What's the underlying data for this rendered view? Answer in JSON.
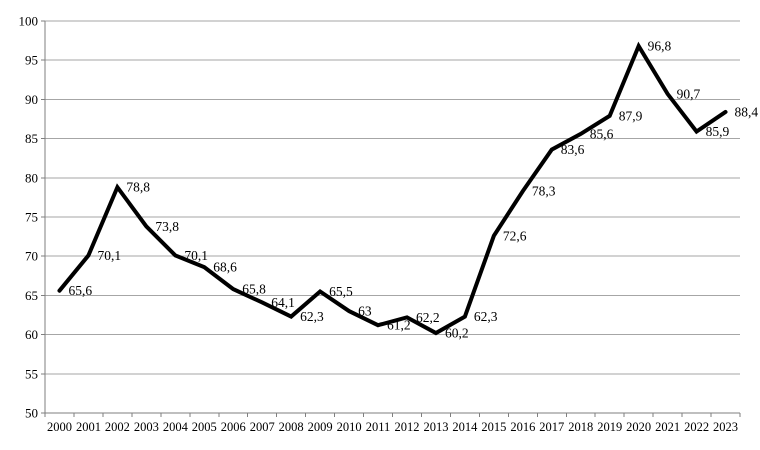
{
  "chart": {
    "background_color": "#ffffff",
    "line_color": "#000000",
    "gridline_color": "#a6a6a6",
    "axis_color": "#7f7f7f",
    "text_color": "#000000"
  },
  "chart_data": {
    "type": "line",
    "title": "",
    "xlabel": "",
    "ylabel": "",
    "categories": [
      "2000",
      "2001",
      "2002",
      "2003",
      "2004",
      "2005",
      "2006",
      "2007",
      "2008",
      "2009",
      "2010",
      "2011",
      "2012",
      "2013",
      "2014",
      "2015",
      "2016",
      "2017",
      "2018",
      "2019",
      "2020",
      "2021",
      "2022",
      "2023"
    ],
    "values": [
      65.6,
      70.1,
      78.8,
      73.8,
      70.1,
      68.6,
      65.8,
      64.1,
      62.3,
      65.5,
      63,
      61.2,
      62.2,
      60.2,
      62.3,
      72.6,
      78.3,
      83.6,
      85.6,
      87.9,
      96.8,
      90.7,
      85.9,
      88.4
    ],
    "point_labels": [
      "65,6",
      "70,1",
      "78,8",
      "73,8",
      "70,1",
      "68,6",
      "65,8",
      "64,1",
      "62,3",
      "65,5",
      "63",
      "61,2",
      "62,2",
      "60,2",
      "62,3",
      "72,6",
      "78,3",
      "83,6",
      "85,6",
      "87,9",
      "96,8",
      "90,7",
      "85,9",
      "88,4"
    ],
    "ylim": [
      50,
      100
    ],
    "yticks": [
      50,
      55,
      60,
      65,
      70,
      75,
      80,
      85,
      90,
      95,
      100
    ],
    "grid": "horizontal",
    "legend": "none",
    "label_position": "right",
    "decimal_separator": ","
  }
}
